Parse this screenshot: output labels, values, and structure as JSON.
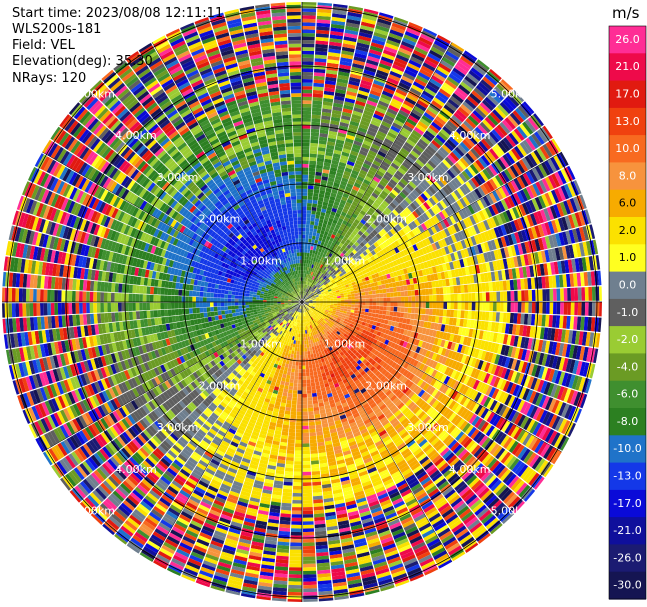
{
  "header": {
    "start_time": "Start time: 2023/08/08 12:11:11",
    "site": "WLS200s-181",
    "field": "Field: VEL",
    "elevation": "Elevation(deg): 35.30",
    "nrays": "NRays: 120"
  },
  "chart_data": {
    "type": "heatmap",
    "projection": "polar-ppi",
    "field": "VEL",
    "units": "m/s",
    "nrays": 120,
    "range_rings_km": [
      1,
      2,
      3,
      4,
      5
    ],
    "range_ring_labels": [
      "1.00km",
      "2.00km",
      "3.00km",
      "4.00km",
      "5.00km"
    ],
    "max_range_km": 5.3,
    "wind_pattern": {
      "negative_core_direction": "north-west",
      "positive_core_direction": "south-east",
      "near_field_peak_ms": 14,
      "noise_beyond_km": 3.5
    },
    "colorbar": {
      "vmin": -30.0,
      "vmax": 30.0,
      "tick_labels": [
        "26.0",
        "21.0",
        "17.0",
        "13.0",
        "10.0",
        "8.0",
        "6.0",
        "2.0",
        "1.0",
        "0.0",
        "-1.0",
        "-2.0",
        "-4.0",
        "-6.0",
        "-8.0",
        "-10.0",
        "-13.0",
        "-17.0",
        "-21.0",
        "-26.0",
        "-30.0"
      ],
      "colors": [
        "#ff2d95",
        "#ee0a4a",
        "#e11a10",
        "#f0410f",
        "#f86a20",
        "#f7933d",
        "#f7ab00",
        "#fbe100",
        "#ffff20",
        "#6f7f8f",
        "#5f5f5f",
        "#9acc33",
        "#6b9b24",
        "#3f8f2f",
        "#2c8021",
        "#1f73c9",
        "#1438e8",
        "#0a0ad8",
        "#0f0f9c",
        "#1b1b72",
        "#151552"
      ]
    }
  }
}
